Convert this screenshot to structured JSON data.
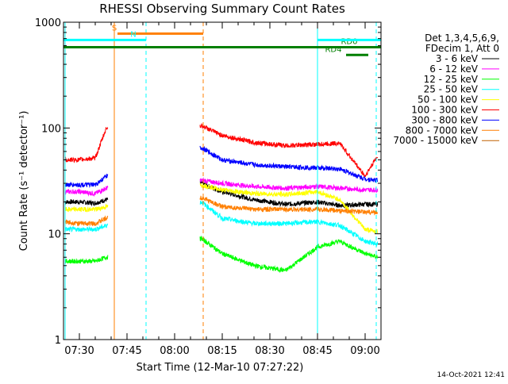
{
  "chart_data": {
    "type": "line",
    "title": "RHESSI Observing Summary Count Rates",
    "xlabel": "Start Time (12-Mar-10 07:27:22)",
    "ylabel": "Count Rate (s⁻¹ detector⁻¹)",
    "yscale": "log",
    "ylim": [
      1,
      1000
    ],
    "xlim_minutes": [
      445,
      545
    ],
    "x_ticks": [
      {
        "minute": 450,
        "label": "07:30"
      },
      {
        "minute": 465,
        "label": "07:45"
      },
      {
        "minute": 480,
        "label": "08:00"
      },
      {
        "minute": 495,
        "label": "08:15"
      },
      {
        "minute": 510,
        "label": "08:30"
      },
      {
        "minute": 525,
        "label": "08:45"
      },
      {
        "minute": 540,
        "label": "09:00"
      }
    ],
    "y_ticks": [
      {
        "value": 1,
        "label": "1"
      },
      {
        "value": 10,
        "label": "10"
      },
      {
        "value": 100,
        "label": "100"
      },
      {
        "value": 1000,
        "label": "1000"
      }
    ],
    "legend_header": [
      "Det 1,3,4,5,6,9,",
      "FDecim 1, Att 0"
    ],
    "legend_position": "right",
    "data_gap_minutes": [
      459,
      488
    ],
    "series": [
      {
        "name": "3 - 6 keV",
        "color": "#000000",
        "x": [
          445.5,
          450,
          455,
          458.5,
          488.5,
          495,
          505,
          515,
          525,
          532,
          540,
          544
        ],
        "y": [
          20,
          20,
          19.5,
          21,
          30,
          25,
          21,
          19,
          20,
          18.5,
          19,
          19
        ]
      },
      {
        "name": "6 - 12 keV",
        "color": "#ff00ff",
        "x": [
          445.5,
          450,
          455,
          458.5,
          488.5,
          495,
          505,
          515,
          525,
          532,
          540,
          544
        ],
        "y": [
          25,
          25,
          24,
          27,
          32,
          30,
          28,
          27,
          28,
          27,
          26,
          26
        ]
      },
      {
        "name": "12 - 25 keV",
        "color": "#00ff00",
        "x": [
          445.5,
          450,
          455,
          458.5,
          488.5,
          495,
          505,
          515,
          525,
          532,
          540,
          544
        ],
        "y": [
          5.5,
          5.5,
          5.5,
          6,
          9,
          6.5,
          5,
          4.5,
          7.5,
          8.5,
          6.5,
          6
        ]
      },
      {
        "name": "25 - 50 keV",
        "color": "#00ffff",
        "x": [
          445.5,
          450,
          455,
          458.5,
          488.5,
          495,
          505,
          515,
          525,
          532,
          540,
          544
        ],
        "y": [
          11,
          11,
          11,
          12,
          20,
          14,
          12.5,
          12.5,
          13,
          12,
          8.5,
          8
        ]
      },
      {
        "name": "50 - 100 keV",
        "color": "#ffff00",
        "x": [
          445.5,
          450,
          455,
          458.5,
          488.5,
          495,
          505,
          515,
          525,
          532,
          540,
          544
        ],
        "y": [
          17,
          17,
          17,
          18,
          29,
          26,
          24,
          23.5,
          25,
          21,
          11,
          10.5
        ]
      },
      {
        "name": "100 - 300 keV",
        "color": "#ff0000",
        "x": [
          445.5,
          450,
          455,
          458.5,
          488.5,
          495,
          505,
          515,
          525,
          532,
          540,
          544
        ],
        "y": [
          50,
          50,
          52,
          100,
          105,
          85,
          73,
          68,
          70,
          72,
          35,
          55
        ]
      },
      {
        "name": "300 - 800 keV",
        "color": "#0000ff",
        "x": [
          445.5,
          450,
          455,
          458.5,
          488.5,
          495,
          505,
          515,
          525,
          532,
          540,
          544
        ],
        "y": [
          29,
          29,
          29,
          35,
          65,
          50,
          45,
          43,
          42,
          41,
          33,
          32
        ]
      },
      {
        "name": "800 - 7000 keV",
        "color": "#ff7f00",
        "x": [
          445.5,
          450,
          455,
          458.5,
          488.5,
          495,
          505,
          515,
          525,
          532,
          540,
          544
        ],
        "y": [
          13,
          12.5,
          12.5,
          14,
          22,
          18,
          17,
          17,
          17,
          16.5,
          16,
          16
        ]
      },
      {
        "name": "7000 - 15000 keV",
        "color": "#c06000",
        "x": [],
        "y": []
      }
    ],
    "markers": [
      {
        "label": "S",
        "color": "#ff7f00",
        "start": 462,
        "end": 489,
        "value": 780,
        "label_at": 461
      },
      {
        "label": "N",
        "color": "#00ffff",
        "start": 445,
        "end": 471,
        "value": 680,
        "label_at": 467
      },
      {
        "label": "RD0",
        "color": "#007f00",
        "start": 445,
        "end": 545,
        "value": 580,
        "label_at": 535
      },
      {
        "label": "RD4",
        "color": "#007f00",
        "start": 534,
        "end": 541,
        "value": 490,
        "label_at": 530
      },
      {
        "label": "",
        "color": "#00ffff",
        "start": 525,
        "end": 545,
        "value": 680,
        "label_at": 0
      }
    ],
    "vertical_lines": [
      {
        "minute": 445.5,
        "color": "#00ffff",
        "style": "solid"
      },
      {
        "minute": 461,
        "color": "#ff7f00",
        "style": "solid"
      },
      {
        "minute": 471,
        "color": "#00ffff",
        "style": "dashed"
      },
      {
        "minute": 489,
        "color": "#ff7f00",
        "style": "dashed"
      },
      {
        "minute": 525,
        "color": "#00ffff",
        "style": "solid"
      },
      {
        "minute": 543.5,
        "color": "#00ffff",
        "style": "dashed"
      }
    ],
    "grid": false
  },
  "footer": {
    "timestamp": "14-Oct-2021 12:41"
  }
}
